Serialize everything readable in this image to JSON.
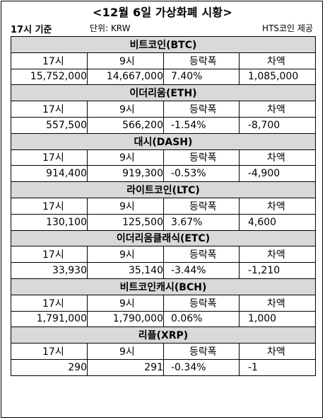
{
  "title": "<12월 6일 가상화폐 시황>",
  "meta": {
    "left": "17시 기준",
    "unit": "단위: KRW",
    "source": "HTS코인 제공"
  },
  "columns": [
    "17시",
    "9시",
    "등락폭",
    "차액"
  ],
  "coins": [
    {
      "name": "비트코인(BTC)",
      "v17": "15,752,000",
      "v9": "14,667,000",
      "change": "7.40%",
      "diff": "1,085,000"
    },
    {
      "name": "이더리움(ETH)",
      "v17": "557,500",
      "v9": "566,200",
      "change": "-1.54%",
      "diff": "-8,700"
    },
    {
      "name": "대시(DASH)",
      "v17": "914,400",
      "v9": "919,300",
      "change": "-0.53%",
      "diff": "-4,900"
    },
    {
      "name": "라이트코인(LTC)",
      "v17": "130,100",
      "v9": "125,500",
      "change": "3.67%",
      "diff": "4,600"
    },
    {
      "name": "이더리움클래식(ETC)",
      "v17": "33,930",
      "v9": "35,140",
      "change": "-3.44%",
      "diff": "-1,210"
    },
    {
      "name": "비트코인캐시(BCH)",
      "v17": "1,791,000",
      "v9": "1,790,000",
      "change": "0.06%",
      "diff": "1,000"
    },
    {
      "name": "리플(XRP)",
      "v17": "290",
      "v9": "291",
      "change": "-0.34%",
      "diff": "-1"
    }
  ]
}
